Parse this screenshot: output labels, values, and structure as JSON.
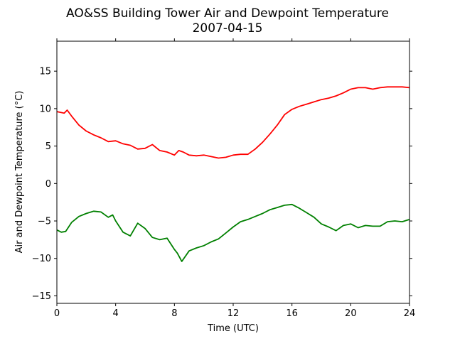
{
  "chart_data": {
    "type": "line",
    "title": "AO&SS Building Tower Air and Dewpoint Temperature",
    "subtitle": "2007-04-15",
    "xlabel": "Time (UTC)",
    "ylabel": "Air and Dewpoint Temperature (°C)",
    "xlim": [
      0,
      24
    ],
    "ylim": [
      -16,
      19
    ],
    "xticks": [
      0,
      4,
      8,
      12,
      16,
      20,
      24
    ],
    "yticks": [
      -15,
      -10,
      -5,
      0,
      5,
      10,
      15
    ],
    "grid": false,
    "series": [
      {
        "color": "#ff0000",
        "x": [
          0,
          0.5,
          0.7,
          1,
          1.5,
          2,
          2.5,
          3,
          3.5,
          4,
          4.5,
          5,
          5.5,
          6,
          6.5,
          7,
          7.5,
          8,
          8.3,
          8.6,
          9,
          9.5,
          10,
          10.5,
          11,
          11.5,
          12,
          12.5,
          13,
          13.5,
          14,
          14.5,
          15,
          15.5,
          16,
          16.5,
          17,
          17.5,
          18,
          18.5,
          19,
          19.5,
          20,
          20.5,
          21,
          21.5,
          22,
          22.5,
          23,
          23.5,
          24
        ],
        "y": [
          9.6,
          9.4,
          9.8,
          9.0,
          7.8,
          7.0,
          6.5,
          6.1,
          5.6,
          5.7,
          5.3,
          5.1,
          4.6,
          4.7,
          5.2,
          4.4,
          4.2,
          3.8,
          4.4,
          4.2,
          3.8,
          3.7,
          3.8,
          3.6,
          3.4,
          3.5,
          3.8,
          3.9,
          3.9,
          4.6,
          5.5,
          6.6,
          7.8,
          9.2,
          9.9,
          10.3,
          10.6,
          10.9,
          11.2,
          11.4,
          11.7,
          12.1,
          12.6,
          12.8,
          12.8,
          12.6,
          12.8,
          12.9,
          12.9,
          12.9,
          12.8
        ]
      },
      {
        "color": "#008000",
        "x": [
          0,
          0.3,
          0.6,
          1,
          1.5,
          2,
          2.5,
          3,
          3.5,
          3.8,
          4,
          4.5,
          5,
          5.5,
          6,
          6.5,
          7,
          7.5,
          8,
          8.2,
          8.5,
          9,
          9.5,
          10,
          10.5,
          11,
          11.5,
          12,
          12.5,
          13,
          13.5,
          14,
          14.5,
          15,
          15.5,
          16,
          16.5,
          17,
          17.5,
          18,
          18.5,
          19,
          19.5,
          20,
          20.5,
          21,
          21.5,
          22,
          22.5,
          23,
          23.5,
          24
        ],
        "y": [
          -6.2,
          -6.5,
          -6.4,
          -5.2,
          -4.4,
          -4.0,
          -3.7,
          -3.8,
          -4.5,
          -4.2,
          -5.0,
          -6.5,
          -7.0,
          -5.3,
          -6.0,
          -7.2,
          -7.5,
          -7.3,
          -8.8,
          -9.3,
          -10.4,
          -9.0,
          -8.6,
          -8.3,
          -7.8,
          -7.4,
          -6.6,
          -5.8,
          -5.1,
          -4.8,
          -4.4,
          -4.0,
          -3.5,
          -3.2,
          -2.9,
          -2.8,
          -3.3,
          -3.9,
          -4.5,
          -5.4,
          -5.8,
          -6.3,
          -5.6,
          -5.4,
          -5.9,
          -5.6,
          -5.7,
          -5.7,
          -5.1,
          -5.0,
          -5.1,
          -4.8
        ]
      }
    ]
  }
}
